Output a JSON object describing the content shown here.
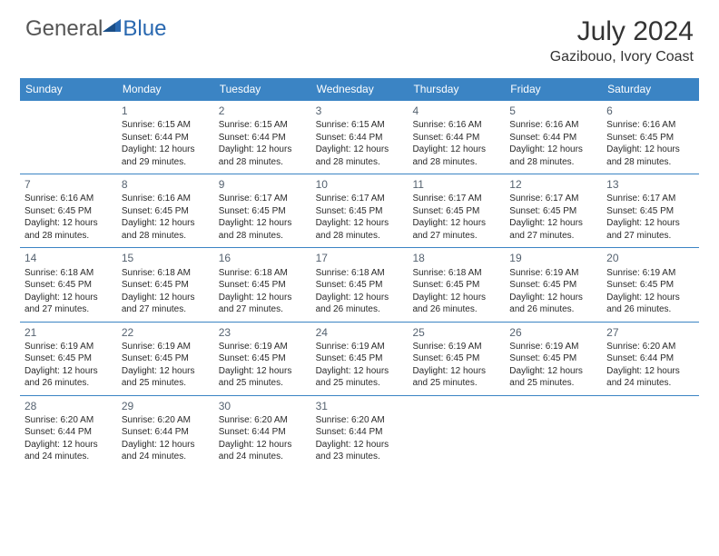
{
  "logo": {
    "general": "General",
    "blue": "Blue"
  },
  "title": "July 2024",
  "location": "Gazibouo, Ivory Coast",
  "colors": {
    "header_bg": "#3b84c4",
    "header_text": "#ffffff",
    "rule": "#3b84c4",
    "daynum": "#556270",
    "body_text": "#2a2a2a",
    "logo_gray": "#555555",
    "logo_blue": "#2968b0"
  },
  "weekdays": [
    "Sunday",
    "Monday",
    "Tuesday",
    "Wednesday",
    "Thursday",
    "Friday",
    "Saturday"
  ],
  "weeks": [
    [
      {
        "n": "",
        "sr": "",
        "ss": "",
        "dl": ""
      },
      {
        "n": "1",
        "sr": "Sunrise: 6:15 AM",
        "ss": "Sunset: 6:44 PM",
        "dl": "Daylight: 12 hours and 29 minutes."
      },
      {
        "n": "2",
        "sr": "Sunrise: 6:15 AM",
        "ss": "Sunset: 6:44 PM",
        "dl": "Daylight: 12 hours and 28 minutes."
      },
      {
        "n": "3",
        "sr": "Sunrise: 6:15 AM",
        "ss": "Sunset: 6:44 PM",
        "dl": "Daylight: 12 hours and 28 minutes."
      },
      {
        "n": "4",
        "sr": "Sunrise: 6:16 AM",
        "ss": "Sunset: 6:44 PM",
        "dl": "Daylight: 12 hours and 28 minutes."
      },
      {
        "n": "5",
        "sr": "Sunrise: 6:16 AM",
        "ss": "Sunset: 6:44 PM",
        "dl": "Daylight: 12 hours and 28 minutes."
      },
      {
        "n": "6",
        "sr": "Sunrise: 6:16 AM",
        "ss": "Sunset: 6:45 PM",
        "dl": "Daylight: 12 hours and 28 minutes."
      }
    ],
    [
      {
        "n": "7",
        "sr": "Sunrise: 6:16 AM",
        "ss": "Sunset: 6:45 PM",
        "dl": "Daylight: 12 hours and 28 minutes."
      },
      {
        "n": "8",
        "sr": "Sunrise: 6:16 AM",
        "ss": "Sunset: 6:45 PM",
        "dl": "Daylight: 12 hours and 28 minutes."
      },
      {
        "n": "9",
        "sr": "Sunrise: 6:17 AM",
        "ss": "Sunset: 6:45 PM",
        "dl": "Daylight: 12 hours and 28 minutes."
      },
      {
        "n": "10",
        "sr": "Sunrise: 6:17 AM",
        "ss": "Sunset: 6:45 PM",
        "dl": "Daylight: 12 hours and 28 minutes."
      },
      {
        "n": "11",
        "sr": "Sunrise: 6:17 AM",
        "ss": "Sunset: 6:45 PM",
        "dl": "Daylight: 12 hours and 27 minutes."
      },
      {
        "n": "12",
        "sr": "Sunrise: 6:17 AM",
        "ss": "Sunset: 6:45 PM",
        "dl": "Daylight: 12 hours and 27 minutes."
      },
      {
        "n": "13",
        "sr": "Sunrise: 6:17 AM",
        "ss": "Sunset: 6:45 PM",
        "dl": "Daylight: 12 hours and 27 minutes."
      }
    ],
    [
      {
        "n": "14",
        "sr": "Sunrise: 6:18 AM",
        "ss": "Sunset: 6:45 PM",
        "dl": "Daylight: 12 hours and 27 minutes."
      },
      {
        "n": "15",
        "sr": "Sunrise: 6:18 AM",
        "ss": "Sunset: 6:45 PM",
        "dl": "Daylight: 12 hours and 27 minutes."
      },
      {
        "n": "16",
        "sr": "Sunrise: 6:18 AM",
        "ss": "Sunset: 6:45 PM",
        "dl": "Daylight: 12 hours and 27 minutes."
      },
      {
        "n": "17",
        "sr": "Sunrise: 6:18 AM",
        "ss": "Sunset: 6:45 PM",
        "dl": "Daylight: 12 hours and 26 minutes."
      },
      {
        "n": "18",
        "sr": "Sunrise: 6:18 AM",
        "ss": "Sunset: 6:45 PM",
        "dl": "Daylight: 12 hours and 26 minutes."
      },
      {
        "n": "19",
        "sr": "Sunrise: 6:19 AM",
        "ss": "Sunset: 6:45 PM",
        "dl": "Daylight: 12 hours and 26 minutes."
      },
      {
        "n": "20",
        "sr": "Sunrise: 6:19 AM",
        "ss": "Sunset: 6:45 PM",
        "dl": "Daylight: 12 hours and 26 minutes."
      }
    ],
    [
      {
        "n": "21",
        "sr": "Sunrise: 6:19 AM",
        "ss": "Sunset: 6:45 PM",
        "dl": "Daylight: 12 hours and 26 minutes."
      },
      {
        "n": "22",
        "sr": "Sunrise: 6:19 AM",
        "ss": "Sunset: 6:45 PM",
        "dl": "Daylight: 12 hours and 25 minutes."
      },
      {
        "n": "23",
        "sr": "Sunrise: 6:19 AM",
        "ss": "Sunset: 6:45 PM",
        "dl": "Daylight: 12 hours and 25 minutes."
      },
      {
        "n": "24",
        "sr": "Sunrise: 6:19 AM",
        "ss": "Sunset: 6:45 PM",
        "dl": "Daylight: 12 hours and 25 minutes."
      },
      {
        "n": "25",
        "sr": "Sunrise: 6:19 AM",
        "ss": "Sunset: 6:45 PM",
        "dl": "Daylight: 12 hours and 25 minutes."
      },
      {
        "n": "26",
        "sr": "Sunrise: 6:19 AM",
        "ss": "Sunset: 6:45 PM",
        "dl": "Daylight: 12 hours and 25 minutes."
      },
      {
        "n": "27",
        "sr": "Sunrise: 6:20 AM",
        "ss": "Sunset: 6:44 PM",
        "dl": "Daylight: 12 hours and 24 minutes."
      }
    ],
    [
      {
        "n": "28",
        "sr": "Sunrise: 6:20 AM",
        "ss": "Sunset: 6:44 PM",
        "dl": "Daylight: 12 hours and 24 minutes."
      },
      {
        "n": "29",
        "sr": "Sunrise: 6:20 AM",
        "ss": "Sunset: 6:44 PM",
        "dl": "Daylight: 12 hours and 24 minutes."
      },
      {
        "n": "30",
        "sr": "Sunrise: 6:20 AM",
        "ss": "Sunset: 6:44 PM",
        "dl": "Daylight: 12 hours and 24 minutes."
      },
      {
        "n": "31",
        "sr": "Sunrise: 6:20 AM",
        "ss": "Sunset: 6:44 PM",
        "dl": "Daylight: 12 hours and 23 minutes."
      },
      {
        "n": "",
        "sr": "",
        "ss": "",
        "dl": ""
      },
      {
        "n": "",
        "sr": "",
        "ss": "",
        "dl": ""
      },
      {
        "n": "",
        "sr": "",
        "ss": "",
        "dl": ""
      }
    ]
  ]
}
